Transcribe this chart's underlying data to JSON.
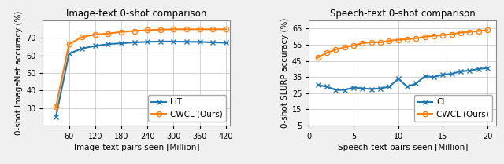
{
  "left": {
    "title": "Image-text 0-shot comparison",
    "xlabel": "Image-text pairs seen [Million]",
    "ylabel": "0-shot ImageNet accuracy (%)",
    "xlim": [
      0,
      430
    ],
    "ylim": [
      20,
      80
    ],
    "yticks": [
      30,
      40,
      50,
      60,
      70
    ],
    "xticks": [
      60,
      120,
      180,
      240,
      300,
      360,
      420
    ],
    "lit_x": [
      30,
      60,
      90,
      120,
      150,
      180,
      210,
      240,
      270,
      300,
      330,
      360,
      390,
      420
    ],
    "lit_y": [
      25.0,
      61.0,
      64.0,
      65.5,
      66.5,
      67.0,
      67.5,
      67.8,
      68.0,
      68.0,
      67.8,
      67.8,
      67.5,
      67.3
    ],
    "cwcl_x": [
      30,
      60,
      90,
      120,
      150,
      180,
      210,
      240,
      270,
      300,
      330,
      360,
      390,
      420
    ],
    "cwcl_y": [
      30.5,
      66.5,
      70.5,
      72.0,
      72.5,
      73.5,
      74.0,
      74.5,
      74.8,
      75.0,
      75.0,
      75.0,
      75.0,
      75.0
    ],
    "lit_label": "LiT",
    "cwcl_label": "CWCL (Ours)",
    "lit_color": "#1f77b4",
    "cwcl_color": "#ff7f0e"
  },
  "right": {
    "title": "Speech-text 0-shot comparison",
    "xlabel": "Speech-text pairs seen [Million]",
    "ylabel": "0-shot SLURP accuracy (%)",
    "xlim": [
      0,
      21
    ],
    "ylim": [
      5,
      70
    ],
    "yticks": [
      5,
      15,
      25,
      35,
      45,
      55,
      65
    ],
    "xticks": [
      0,
      5,
      10,
      15,
      20
    ],
    "cl_x": [
      1,
      2,
      3,
      4,
      5,
      6,
      7,
      8,
      9,
      10,
      11,
      12,
      13,
      14,
      15,
      16,
      17,
      18,
      19,
      20
    ],
    "cl_y": [
      30.0,
      29.0,
      27.0,
      27.0,
      28.5,
      28.0,
      27.5,
      28.0,
      29.0,
      34.0,
      29.0,
      31.0,
      35.5,
      35.0,
      36.5,
      37.0,
      38.5,
      39.0,
      40.0,
      40.5
    ],
    "cwcl_x": [
      1,
      2,
      3,
      4,
      5,
      6,
      7,
      8,
      9,
      10,
      11,
      12,
      13,
      14,
      15,
      16,
      17,
      18,
      19,
      20
    ],
    "cwcl_y": [
      47.0,
      50.0,
      52.0,
      53.5,
      54.5,
      56.0,
      56.5,
      56.5,
      57.5,
      58.0,
      58.5,
      59.0,
      60.0,
      60.5,
      61.0,
      61.5,
      62.5,
      63.0,
      63.5,
      64.0
    ],
    "cl_label": "CL",
    "cwcl_label": "CWCL (Ours)",
    "cl_color": "#1f77b4",
    "cwcl_color": "#ff7f0e"
  },
  "fig_bg": "#f0f0f0",
  "axes_bg": "#ffffff",
  "grid_color": "#cccccc",
  "title_fontsize": 8.5,
  "label_fontsize": 7.5,
  "tick_fontsize": 7.0,
  "legend_fontsize": 7.5,
  "linewidth": 1.5,
  "markersize": 4.5
}
